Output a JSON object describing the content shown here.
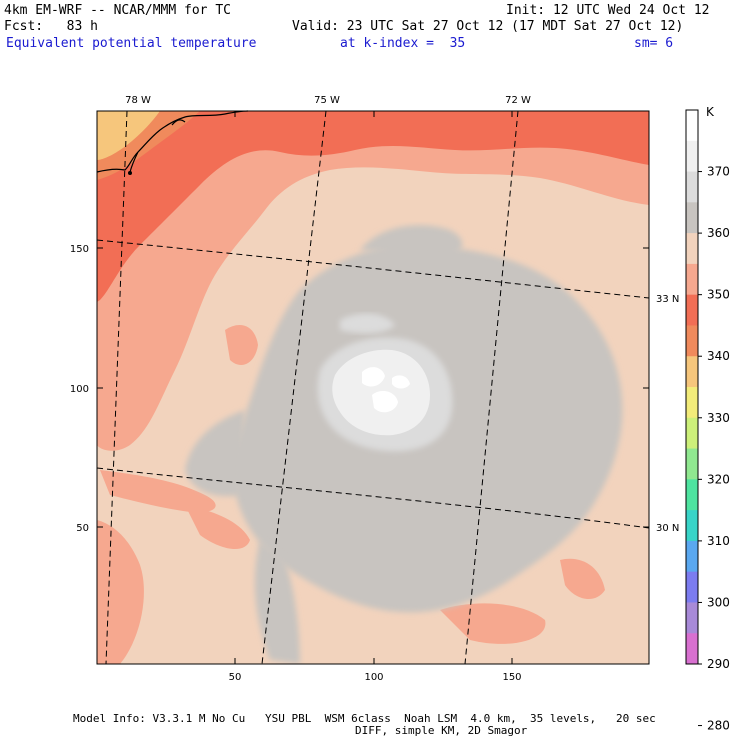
{
  "header": {
    "title_left": "4km EM-WRF -- NCAR/MMM for TC",
    "init": "Init: 12 UTC Wed 24 Oct 12",
    "fcst": "Fcst:   83 h",
    "valid": "Valid: 23 UTC Sat 27 Oct 12 (17 MDT Sat 27 Oct 12)",
    "field": "Equivalent potential temperature",
    "level": "at k-index =  35",
    "smooth": "sm= 6"
  },
  "axes": {
    "x_ticks": [
      "50",
      "100",
      "150"
    ],
    "y_ticks": [
      "50",
      "100",
      "150"
    ],
    "lon_labels": [
      "78 W",
      "75 W",
      "72 W"
    ],
    "lat_labels": [
      "33 N",
      "30 N"
    ]
  },
  "colorbar": {
    "unit": "K",
    "labels": [
      "370",
      "360",
      "350",
      "340",
      "330",
      "320",
      "310",
      "300",
      "290",
      "280"
    ],
    "colors": [
      "#ffffff",
      "#f0f0f0",
      "#dcdcdc",
      "#c8c4c0",
      "#f2d3bd",
      "#f6a88f",
      "#f26e55",
      "#f08a5c",
      "#f6c67c",
      "#f3ec7a",
      "#cdf07a",
      "#90e890",
      "#4ee4a0",
      "#38d4c8",
      "#5aa8f0",
      "#7c7cf0",
      "#a88ad8",
      "#d870d0"
    ]
  },
  "footer": {
    "line1": "Model Info: V3.3.1 M No Cu   YSU PBL  WSM 6class  Noah LSM  4.0 km,  35 levels,   20 sec",
    "line2": "DIFF, simple KM, 2D Smagor"
  }
}
